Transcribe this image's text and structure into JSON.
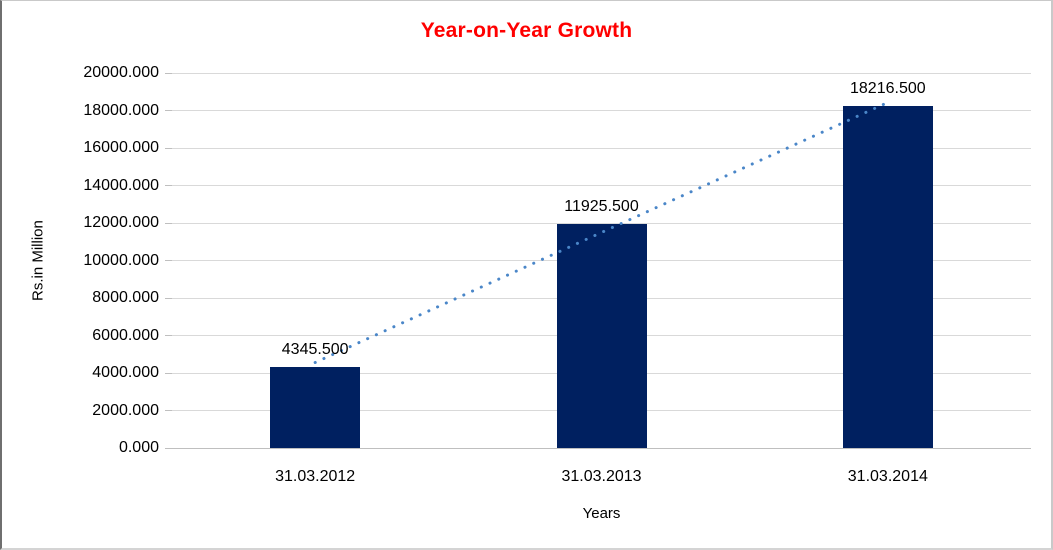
{
  "chart_data": {
    "type": "bar",
    "title": "Year-on-Year Growth",
    "xlabel": "Years",
    "ylabel": "Rs.in Million",
    "categories": [
      "31.03.2012",
      "31.03.2013",
      "31.03.2014"
    ],
    "values": [
      4345.5,
      11925.5,
      18216.5
    ],
    "data_labels": [
      "4345.500",
      "11925.500",
      "18216.500"
    ],
    "ylim": [
      0,
      20000
    ],
    "y_tick_step": 2000,
    "y_tick_labels": [
      "0.000",
      "2000.000",
      "4000.000",
      "6000.000",
      "8000.000",
      "10000.000",
      "12000.000",
      "14000.000",
      "16000.000",
      "18000.000",
      "20000.000"
    ],
    "grid": true,
    "legend": "none",
    "trendline": {
      "type": "linear",
      "style": "dotted"
    },
    "colors": {
      "bar": "#002060",
      "title": "#FF0000",
      "trendline": "#4A86C8",
      "gridline": "#D9D9D9",
      "axis_line": "#BFBFBF",
      "tick": "#BFBFBF",
      "text": "#000000"
    }
  }
}
